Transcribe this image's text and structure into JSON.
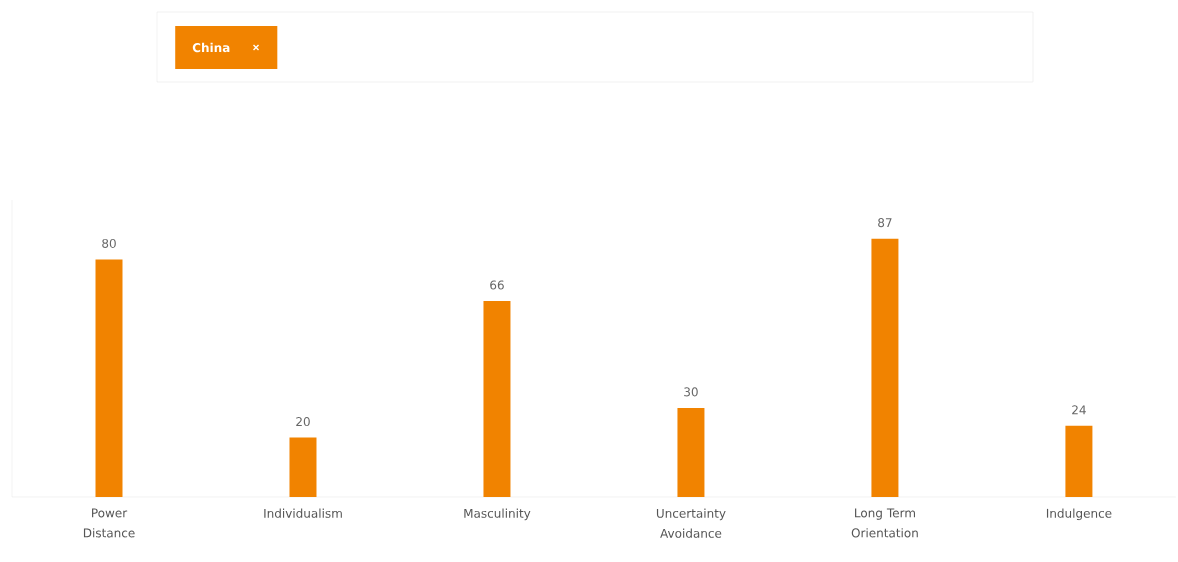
{
  "chart_data": {
    "type": "bar",
    "categories": [
      "Power Distance",
      "Individualism",
      "Masculinity",
      "Uncertainty Avoidance",
      "Long Term Orientation",
      "Indulgence"
    ],
    "series": [
      {
        "name": "China",
        "color": "#f18300",
        "values": [
          80,
          20,
          66,
          30,
          87,
          24
        ]
      }
    ],
    "data_labels": true,
    "relative": false,
    "legend": "top"
  }
}
